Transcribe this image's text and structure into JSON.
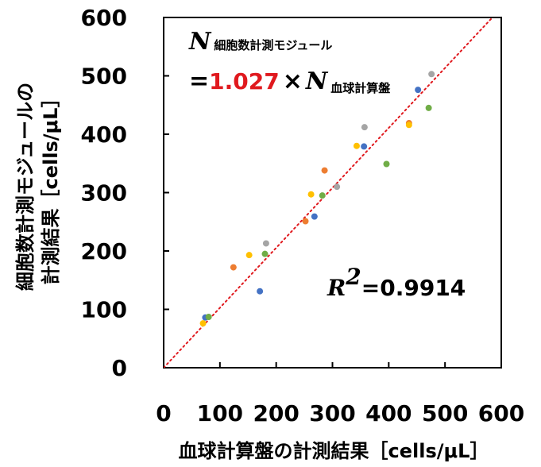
{
  "chart_data": {
    "type": "scatter",
    "xlabel": "血球計算盤の計測結果［cells/μL］",
    "ylabel_line1": "細胞数計測モジュールの",
    "ylabel_line2": "計測結果［cells/μL］",
    "xlim": [
      0,
      600
    ],
    "ylim": [
      0,
      600
    ],
    "xticks": [
      "0",
      "100",
      "200",
      "300",
      "400",
      "500",
      "600"
    ],
    "yticks": [
      "0",
      "100",
      "200",
      "300",
      "400",
      "500",
      "600"
    ],
    "grid": false,
    "legend": "none",
    "fit_line": {
      "slope": 1.027,
      "intercept": 0,
      "color": "#e0191e",
      "style": "dotted"
    },
    "equation": {
      "lhs_symbol": "N",
      "lhs_subscript": "細胞数計測モジュール",
      "equals": "=",
      "coefficient": "1.027",
      "times": "×",
      "rhs_symbol": "N",
      "rhs_subscript": "血球計算盤"
    },
    "r_squared": {
      "symbol": "R",
      "superscript": "2",
      "equals": "=",
      "value": "0.9914"
    },
    "series": [
      {
        "color": "#4472c4",
        "points": [
          [
            74,
            86
          ],
          [
            171,
            131
          ],
          [
            268,
            259
          ],
          [
            356,
            379
          ],
          [
            452,
            476
          ]
        ]
      },
      {
        "color": "#ed7d31",
        "points": [
          [
            124,
            172
          ],
          [
            252,
            251
          ],
          [
            286,
            338
          ],
          [
            436,
            419
          ]
        ]
      },
      {
        "color": "#a5a5a5",
        "points": [
          [
            182,
            213
          ],
          [
            308,
            310
          ],
          [
            357,
            412
          ],
          [
            476,
            503
          ]
        ]
      },
      {
        "color": "#ffc000",
        "points": [
          [
            70,
            76
          ],
          [
            152,
            193
          ],
          [
            262,
            297
          ],
          [
            343,
            380
          ],
          [
            436,
            416
          ]
        ]
      },
      {
        "color": "#70ad47",
        "points": [
          [
            80,
            87
          ],
          [
            180,
            195
          ],
          [
            282,
            295
          ],
          [
            396,
            349
          ],
          [
            471,
            445
          ]
        ]
      }
    ]
  }
}
